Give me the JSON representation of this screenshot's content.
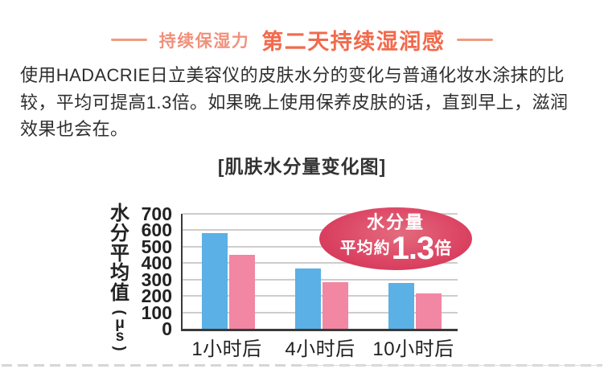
{
  "colors": {
    "header_light": "#f0917c",
    "header_bold": "#f26a4c",
    "bar_blue": "#5bb0e5",
    "bar_pink": "#f287a3",
    "badge_center": "#e36b7e",
    "badge_edge": "#d22c52",
    "axis": "#3a3a3a",
    "grid": "#cdcdcd"
  },
  "header": {
    "light_label": "持续保湿力",
    "bold_label": "第二天持续湿润感"
  },
  "intro": {
    "lines": [
      "使用HADACRIE日立美容仪的皮肤水分的变化与普通化妆水涂抹的比",
      "较，平均可提高1.3倍。如果晚上使用保养皮肤的话，直到早上，滋润",
      "效果也会在。"
    ]
  },
  "chart": {
    "title": "[肌肤水分量变化图]",
    "y_axis_label_chars": [
      "水",
      "分",
      "平",
      "均",
      "值"
    ],
    "y_axis_unit": {
      "open": "(",
      "mu": "μ",
      "ss": "s",
      "close": ")"
    },
    "badge": {
      "line1": "水分量",
      "prefix": "平均約",
      "value": "1.3",
      "suffix": "倍"
    }
  },
  "chart_data": {
    "type": "bar",
    "title": "[肌肤水分量变化图]",
    "categories": [
      "1小时后",
      "4小时后",
      "10小时后"
    ],
    "series": [
      {
        "name": "blue-bars",
        "color": "#5bb0e5",
        "values": [
          585,
          365,
          280
        ]
      },
      {
        "name": "pink-bars",
        "color": "#f287a3",
        "values": [
          450,
          285,
          215
        ]
      }
    ],
    "ylabel": "水分平均值（μs）",
    "yticks": [
      0,
      100,
      200,
      300,
      400,
      500,
      600,
      700
    ],
    "ylim": [
      0,
      700
    ],
    "grid": true,
    "legend": false,
    "annotation": "水分量 平均約1.3倍"
  }
}
